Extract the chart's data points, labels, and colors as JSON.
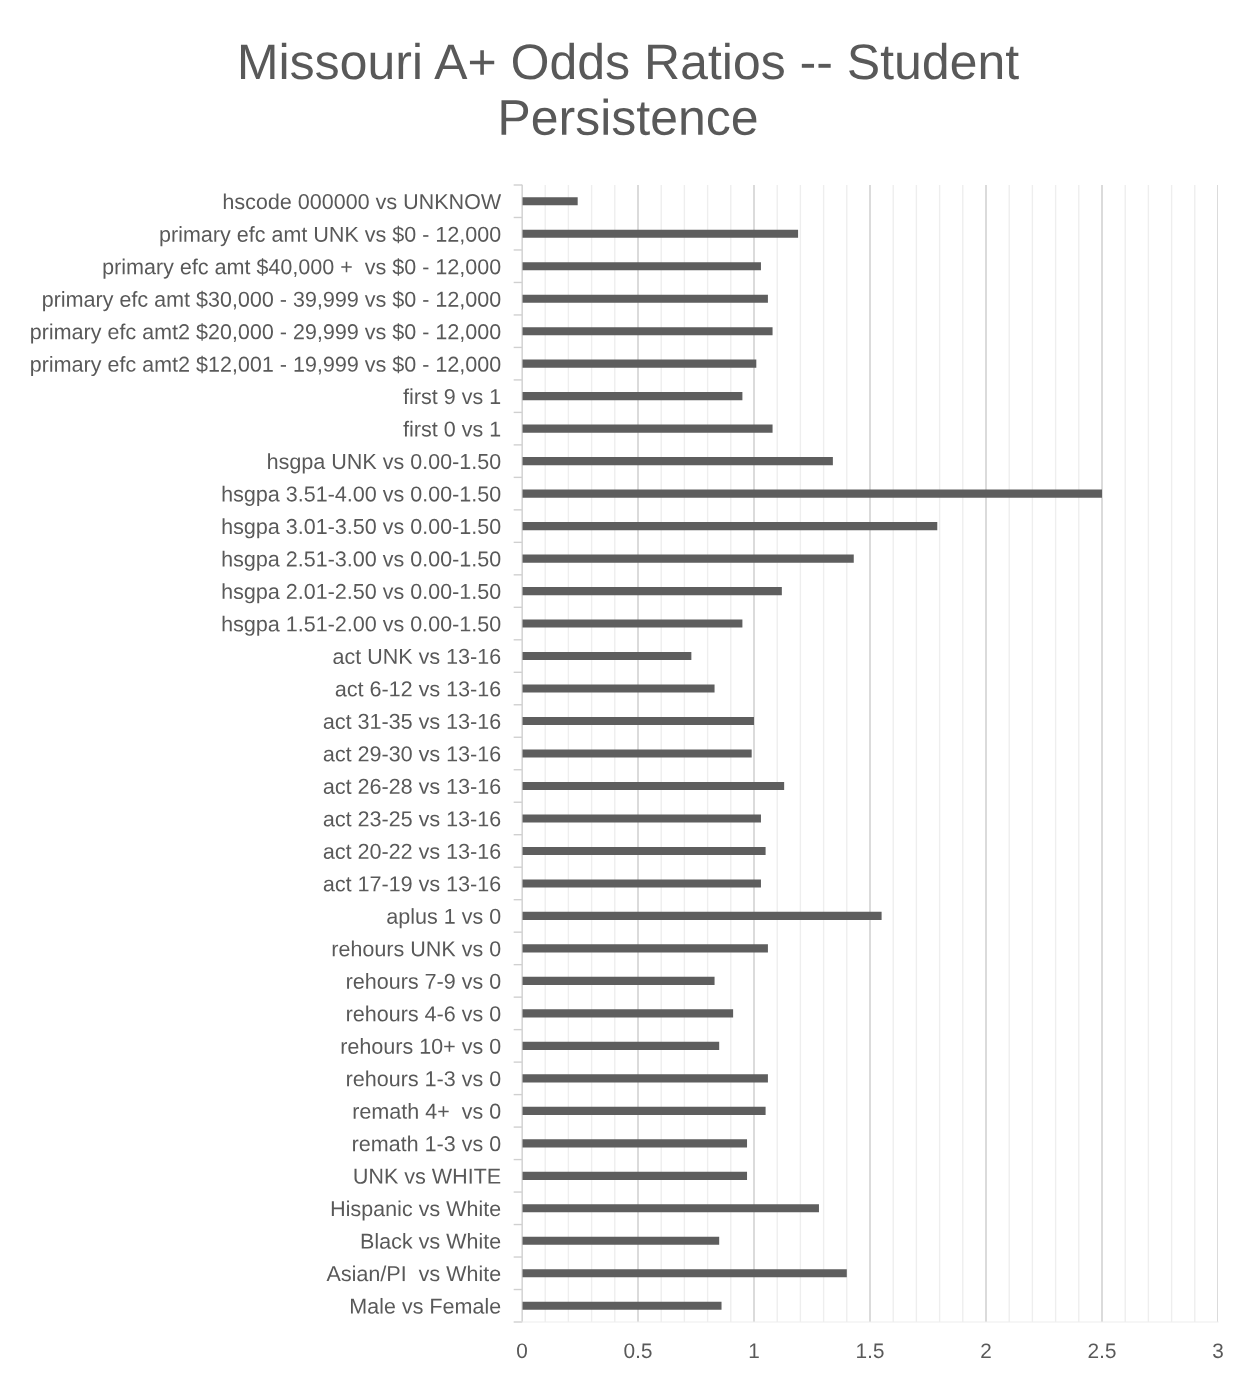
{
  "chart_data": {
    "type": "bar",
    "orientation": "horizontal",
    "title": "Missouri A+ Odds Ratios -- Student\nPersistence",
    "categories": [
      "hscode 000000 vs UNKNOW",
      "primary efc amt UNK vs $0 - 12,000",
      "primary efc amt $40,000 +  vs $0 - 12,000",
      "primary efc amt $30,000 - 39,999 vs $0 - 12,000",
      "primary efc amt2 $20,000 - 29,999 vs $0 - 12,000",
      "primary efc amt2 $12,001 - 19,999 vs $0 - 12,000",
      "first 9 vs 1",
      "first 0 vs 1",
      "hsgpa UNK vs 0.00-1.50",
      "hsgpa 3.51-4.00 vs 0.00-1.50",
      "hsgpa 3.01-3.50 vs 0.00-1.50",
      "hsgpa 2.51-3.00 vs 0.00-1.50",
      "hsgpa 2.01-2.50 vs 0.00-1.50",
      "hsgpa 1.51-2.00 vs 0.00-1.50",
      "act UNK vs 13-16",
      "act 6-12 vs 13-16",
      "act 31-35 vs 13-16",
      "act 29-30 vs 13-16",
      "act 26-28 vs 13-16",
      "act 23-25 vs 13-16",
      "act 20-22 vs 13-16",
      "act 17-19 vs 13-16",
      "aplus 1 vs 0",
      "rehours UNK vs 0",
      "rehours 7-9 vs 0",
      "rehours 4-6 vs 0",
      "rehours 10+ vs 0",
      "rehours 1-3 vs 0",
      "remath 4+  vs 0",
      "remath 1-3 vs 0",
      "UNK vs WHITE",
      "Hispanic vs White",
      "Black vs White",
      "Asian/PI  vs White",
      "Male vs Female"
    ],
    "values": [
      0.24,
      1.19,
      1.03,
      1.06,
      1.08,
      1.01,
      0.95,
      1.08,
      1.34,
      2.5,
      1.79,
      1.43,
      1.12,
      0.95,
      0.73,
      0.83,
      1.0,
      0.99,
      1.13,
      1.03,
      1.05,
      1.03,
      1.55,
      1.06,
      0.83,
      0.91,
      0.85,
      1.06,
      1.05,
      0.97,
      0.97,
      1.28,
      0.85,
      1.4,
      0.86
    ],
    "color": "#5e5e5e",
    "xlim": [
      0,
      3
    ],
    "xticks": [
      0,
      {
        "value": 0.1,
        "label": null
      },
      {
        "value": 0.2,
        "label": null
      },
      {
        "value": 0.3,
        "label": null
      },
      {
        "value": 0.4,
        "label": null
      },
      0.5,
      {
        "value": 0.6,
        "label": null
      },
      {
        "value": 0.7,
        "label": null
      },
      {
        "value": 0.8,
        "label": null
      },
      {
        "value": 0.9,
        "label": null
      },
      1,
      {
        "value": 1.1,
        "label": null
      },
      {
        "value": 1.2,
        "label": null
      },
      {
        "value": 1.3,
        "label": null
      },
      {
        "value": 1.4,
        "label": null
      },
      1.5,
      {
        "value": 1.6,
        "label": null
      },
      {
        "value": 1.7,
        "label": null
      },
      {
        "value": 1.8,
        "label": null
      },
      {
        "value": 1.9,
        "label": null
      },
      2,
      {
        "value": 2.1,
        "label": null
      },
      {
        "value": 2.2,
        "label": null
      },
      {
        "value": 2.3,
        "label": null
      },
      {
        "value": 2.4,
        "label": null
      },
      2.5,
      {
        "value": 2.6,
        "label": null
      },
      {
        "value": 2.7,
        "label": null
      },
      {
        "value": 2.8,
        "label": null
      },
      {
        "value": 2.9,
        "label": null
      },
      3
    ],
    "grid": "x"
  }
}
